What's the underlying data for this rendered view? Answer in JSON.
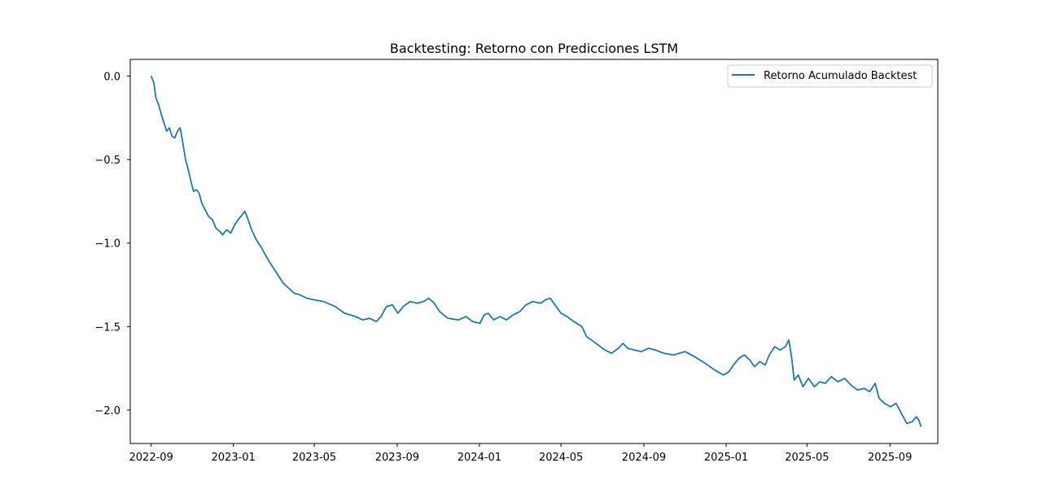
{
  "chart_data": {
    "type": "line",
    "title": "Backtesting: Retorno con Predicciones LSTM",
    "xlabel": "",
    "ylabel": "",
    "x_scale": "date",
    "xlim": [
      "2022-08-01",
      "2025-11-11"
    ],
    "ylim": [
      -2.2,
      0.1
    ],
    "x_ticks": [
      "2022-09",
      "2023-01",
      "2023-05",
      "2023-09",
      "2024-01",
      "2024-05",
      "2024-09",
      "2025-01",
      "2025-05",
      "2025-09"
    ],
    "y_ticks": [
      0.0,
      -0.5,
      -1.0,
      -1.5,
      -2.0
    ],
    "y_tick_labels": [
      "0.0",
      "−0.5",
      "−1.0",
      "−1.5",
      "−2.0"
    ],
    "grid": false,
    "legend_position": "upper right",
    "series": [
      {
        "name": "Retorno Acumulado Backtest",
        "color": "#1f77b4",
        "points": [
          [
            "2022-09-01",
            0.0
          ],
          [
            "2022-09-05",
            -0.04
          ],
          [
            "2022-09-08",
            -0.13
          ],
          [
            "2022-09-12",
            -0.17
          ],
          [
            "2022-09-16",
            -0.23
          ],
          [
            "2022-09-20",
            -0.28
          ],
          [
            "2022-09-24",
            -0.33
          ],
          [
            "2022-09-28",
            -0.31
          ],
          [
            "2022-10-02",
            -0.36
          ],
          [
            "2022-10-06",
            -0.37
          ],
          [
            "2022-10-10",
            -0.33
          ],
          [
            "2022-10-14",
            -0.31
          ],
          [
            "2022-10-18",
            -0.4
          ],
          [
            "2022-10-22",
            -0.5
          ],
          [
            "2022-10-26",
            -0.56
          ],
          [
            "2022-10-30",
            -0.63
          ],
          [
            "2022-11-03",
            -0.69
          ],
          [
            "2022-11-07",
            -0.68
          ],
          [
            "2022-11-11",
            -0.7
          ],
          [
            "2022-11-15",
            -0.76
          ],
          [
            "2022-11-20",
            -0.8
          ],
          [
            "2022-11-25",
            -0.84
          ],
          [
            "2022-12-01",
            -0.86
          ],
          [
            "2022-12-06",
            -0.91
          ],
          [
            "2022-12-12",
            -0.93
          ],
          [
            "2022-12-16",
            -0.95
          ],
          [
            "2022-12-22",
            -0.92
          ],
          [
            "2022-12-28",
            -0.94
          ],
          [
            "2023-01-03",
            -0.89
          ],
          [
            "2023-01-08",
            -0.86
          ],
          [
            "2023-01-14",
            -0.83
          ],
          [
            "2023-01-18",
            -0.81
          ],
          [
            "2023-01-22",
            -0.85
          ],
          [
            "2023-01-28",
            -0.92
          ],
          [
            "2023-02-04",
            -0.98
          ],
          [
            "2023-02-12",
            -1.03
          ],
          [
            "2023-02-20",
            -1.09
          ],
          [
            "2023-02-28",
            -1.14
          ],
          [
            "2023-03-08",
            -1.19
          ],
          [
            "2023-03-16",
            -1.24
          ],
          [
            "2023-03-24",
            -1.27
          ],
          [
            "2023-04-01",
            -1.3
          ],
          [
            "2023-04-10",
            -1.31
          ],
          [
            "2023-04-20",
            -1.33
          ],
          [
            "2023-05-01",
            -1.34
          ],
          [
            "2023-05-15",
            -1.35
          ],
          [
            "2023-06-01",
            -1.38
          ],
          [
            "2023-06-15",
            -1.42
          ],
          [
            "2023-07-01",
            -1.44
          ],
          [
            "2023-07-12",
            -1.46
          ],
          [
            "2023-07-22",
            -1.45
          ],
          [
            "2023-08-01",
            -1.47
          ],
          [
            "2023-08-08",
            -1.44
          ],
          [
            "2023-08-16",
            -1.38
          ],
          [
            "2023-08-25",
            -1.37
          ],
          [
            "2023-09-02",
            -1.42
          ],
          [
            "2023-09-10",
            -1.38
          ],
          [
            "2023-09-20",
            -1.35
          ],
          [
            "2023-10-01",
            -1.36
          ],
          [
            "2023-10-10",
            -1.35
          ],
          [
            "2023-10-18",
            -1.33
          ],
          [
            "2023-10-26",
            -1.36
          ],
          [
            "2023-11-03",
            -1.41
          ],
          [
            "2023-11-15",
            -1.45
          ],
          [
            "2023-12-01",
            -1.46
          ],
          [
            "2023-12-12",
            -1.44
          ],
          [
            "2023-12-22",
            -1.47
          ],
          [
            "2024-01-02",
            -1.48
          ],
          [
            "2024-01-08",
            -1.43
          ],
          [
            "2024-01-14",
            -1.42
          ],
          [
            "2024-01-22",
            -1.46
          ],
          [
            "2024-02-01",
            -1.44
          ],
          [
            "2024-02-10",
            -1.46
          ],
          [
            "2024-02-20",
            -1.43
          ],
          [
            "2024-03-01",
            -1.41
          ],
          [
            "2024-03-10",
            -1.37
          ],
          [
            "2024-03-20",
            -1.35
          ],
          [
            "2024-04-01",
            -1.36
          ],
          [
            "2024-04-08",
            -1.34
          ],
          [
            "2024-04-15",
            -1.33
          ],
          [
            "2024-04-22",
            -1.37
          ],
          [
            "2024-05-01",
            -1.42
          ],
          [
            "2024-05-10",
            -1.44
          ],
          [
            "2024-05-20",
            -1.47
          ],
          [
            "2024-06-01",
            -1.5
          ],
          [
            "2024-06-08",
            -1.56
          ],
          [
            "2024-06-15",
            -1.58
          ],
          [
            "2024-06-25",
            -1.61
          ],
          [
            "2024-07-05",
            -1.64
          ],
          [
            "2024-07-15",
            -1.66
          ],
          [
            "2024-07-25",
            -1.63
          ],
          [
            "2024-08-01",
            -1.6
          ],
          [
            "2024-08-08",
            -1.63
          ],
          [
            "2024-08-18",
            -1.64
          ],
          [
            "2024-08-28",
            -1.65
          ],
          [
            "2024-09-08",
            -1.63
          ],
          [
            "2024-09-18",
            -1.64
          ],
          [
            "2024-10-01",
            -1.66
          ],
          [
            "2024-10-15",
            -1.67
          ],
          [
            "2024-11-01",
            -1.65
          ],
          [
            "2024-11-15",
            -1.68
          ],
          [
            "2024-12-01",
            -1.72
          ],
          [
            "2024-12-15",
            -1.76
          ],
          [
            "2024-12-28",
            -1.79
          ],
          [
            "2025-01-05",
            -1.77
          ],
          [
            "2025-01-12",
            -1.73
          ],
          [
            "2025-01-20",
            -1.69
          ],
          [
            "2025-01-28",
            -1.67
          ],
          [
            "2025-02-05",
            -1.7
          ],
          [
            "2025-02-12",
            -1.74
          ],
          [
            "2025-02-20",
            -1.71
          ],
          [
            "2025-02-28",
            -1.73
          ],
          [
            "2025-03-06",
            -1.67
          ],
          [
            "2025-03-14",
            -1.62
          ],
          [
            "2025-03-22",
            -1.64
          ],
          [
            "2025-03-30",
            -1.62
          ],
          [
            "2025-04-04",
            -1.58
          ],
          [
            "2025-04-08",
            -1.68
          ],
          [
            "2025-04-12",
            -1.82
          ],
          [
            "2025-04-18",
            -1.79
          ],
          [
            "2025-04-25",
            -1.86
          ],
          [
            "2025-05-03",
            -1.81
          ],
          [
            "2025-05-12",
            -1.86
          ],
          [
            "2025-05-20",
            -1.83
          ],
          [
            "2025-05-28",
            -1.84
          ],
          [
            "2025-06-06",
            -1.8
          ],
          [
            "2025-06-16",
            -1.83
          ],
          [
            "2025-06-26",
            -1.81
          ],
          [
            "2025-07-05",
            -1.85
          ],
          [
            "2025-07-15",
            -1.88
          ],
          [
            "2025-07-25",
            -1.87
          ],
          [
            "2025-08-02",
            -1.89
          ],
          [
            "2025-08-10",
            -1.84
          ],
          [
            "2025-08-16",
            -1.93
          ],
          [
            "2025-08-24",
            -1.96
          ],
          [
            "2025-09-02",
            -1.98
          ],
          [
            "2025-09-10",
            -1.96
          ],
          [
            "2025-09-18",
            -2.02
          ],
          [
            "2025-09-26",
            -2.08
          ],
          [
            "2025-10-04",
            -2.07
          ],
          [
            "2025-10-10",
            -2.04
          ],
          [
            "2025-10-14",
            -2.06
          ],
          [
            "2025-10-17",
            -2.1
          ]
        ]
      }
    ]
  }
}
